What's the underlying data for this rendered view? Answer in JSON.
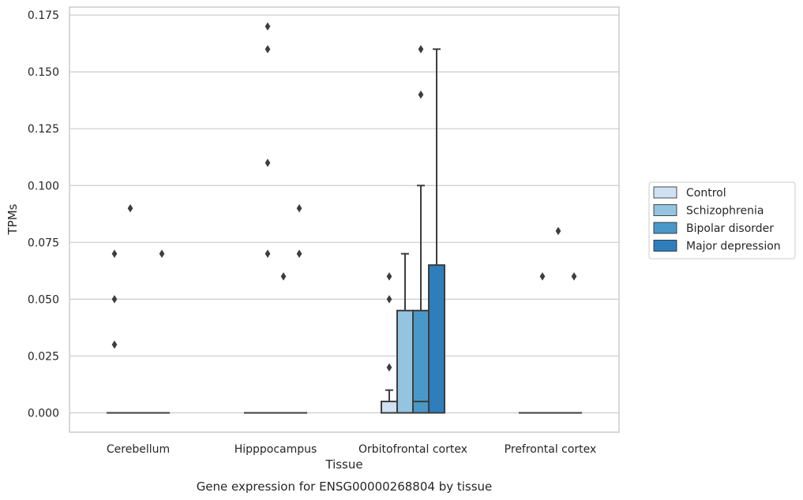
{
  "caption": "Gene expression for ENSG00000268804 by tissue",
  "chart_data": {
    "type": "box",
    "xlabel": "Tissue",
    "ylabel": "TPMs",
    "ylim": [
      -0.0085,
      0.1785
    ],
    "yticks": [
      "0.000",
      "0.025",
      "0.050",
      "0.075",
      "0.100",
      "0.125",
      "0.150",
      "0.175"
    ],
    "grid": true,
    "legend_position": "right",
    "categories": [
      "Cerebellum",
      "Hipppocampus",
      "Orbitofrontal cortex",
      "Prefrontal cortex"
    ],
    "series": [
      {
        "name": "Control",
        "color": "#d0e1f2",
        "boxes": [
          {
            "q1": 0,
            "median": 0,
            "q3": 0,
            "whislo": 0,
            "whishi": 0,
            "fliers": [
              0.03,
              0.05,
              0.07
            ]
          },
          {
            "q1": 0,
            "median": 0,
            "q3": 0,
            "whislo": 0,
            "whishi": 0,
            "fliers": []
          },
          {
            "q1": 0,
            "median": 0,
            "q3": 0.005,
            "whislo": 0,
            "whishi": 0.01,
            "fliers": [
              0.02,
              0.05,
              0.06
            ]
          },
          {
            "q1": 0,
            "median": 0,
            "q3": 0,
            "whislo": 0,
            "whishi": 0,
            "fliers": []
          }
        ]
      },
      {
        "name": "Schizophrenia",
        "color": "#94c4df",
        "boxes": [
          {
            "q1": 0,
            "median": 0,
            "q3": 0,
            "whislo": 0,
            "whishi": 0,
            "fliers": [
              0.09
            ]
          },
          {
            "q1": 0,
            "median": 0,
            "q3": 0,
            "whislo": 0,
            "whishi": 0,
            "fliers": [
              0.07,
              0.11,
              0.16,
              0.17
            ]
          },
          {
            "q1": 0,
            "median": 0,
            "q3": 0.045,
            "whislo": 0,
            "whishi": 0.07,
            "fliers": []
          },
          {
            "q1": 0,
            "median": 0,
            "q3": 0,
            "whislo": 0,
            "whishi": 0,
            "fliers": [
              0.06
            ]
          }
        ]
      },
      {
        "name": "Bipolar disorder",
        "color": "#4a98c9",
        "boxes": [
          {
            "q1": 0,
            "median": 0,
            "q3": 0,
            "whislo": 0,
            "whishi": 0,
            "fliers": []
          },
          {
            "q1": 0,
            "median": 0,
            "q3": 0,
            "whislo": 0,
            "whishi": 0,
            "fliers": [
              0.06
            ]
          },
          {
            "q1": 0,
            "median": 0.005,
            "q3": 0.045,
            "whislo": 0,
            "whishi": 0.1,
            "fliers": [
              0.14,
              0.16
            ]
          },
          {
            "q1": 0,
            "median": 0,
            "q3": 0,
            "whislo": 0,
            "whishi": 0,
            "fliers": [
              0.08
            ]
          }
        ]
      },
      {
        "name": "Major depression",
        "color": "#2e7ebc",
        "boxes": [
          {
            "q1": 0,
            "median": 0,
            "q3": 0,
            "whislo": 0,
            "whishi": 0,
            "fliers": [
              0.07
            ]
          },
          {
            "q1": 0,
            "median": 0,
            "q3": 0,
            "whislo": 0,
            "whishi": 0,
            "fliers": [
              0.07,
              0.09
            ]
          },
          {
            "q1": 0,
            "median": 0,
            "q3": 0.065,
            "whislo": 0,
            "whishi": 0.16,
            "fliers": []
          },
          {
            "q1": 0,
            "median": 0,
            "q3": 0,
            "whislo": 0,
            "whishi": 0,
            "fliers": [
              0.06
            ]
          }
        ]
      }
    ]
  }
}
